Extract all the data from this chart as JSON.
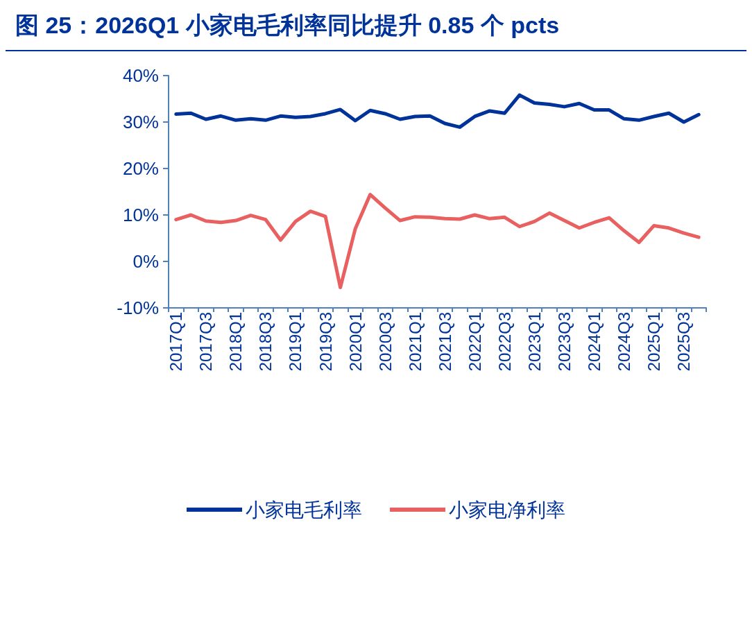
{
  "chart_data": {
    "type": "line",
    "title": "图 25：2026Q1 小家电毛利率同比提升 0.85 个 pcts",
    "categories": [
      "2017Q1",
      null,
      "2017Q3",
      null,
      "2018Q1",
      null,
      "2018Q3",
      null,
      "2019Q1",
      null,
      "2019Q3",
      null,
      "2020Q1",
      null,
      "2020Q3",
      null,
      "2021Q1",
      null,
      "2021Q3",
      null,
      "2022Q1",
      null,
      "2022Q3",
      null,
      "2023Q1",
      null,
      "2023Q3",
      null,
      "2024Q1",
      null,
      "2024Q3",
      null,
      "2025Q1",
      null,
      "2025Q3",
      null
    ],
    "series": [
      {
        "name": "小家电毛利率",
        "color": "#003399",
        "values": [
          31.7,
          31.9,
          30.6,
          31.3,
          30.4,
          30.7,
          30.4,
          31.3,
          31.0,
          31.2,
          31.8,
          32.7,
          30.3,
          32.5,
          31.8,
          30.6,
          31.2,
          31.3,
          29.7,
          28.9,
          31.2,
          32.4,
          31.9,
          35.8,
          34.1,
          33.8,
          33.3,
          34.0,
          32.6,
          32.6,
          30.7,
          30.4,
          31.2,
          31.9,
          30.0,
          31.6
        ]
      },
      {
        "name": "小家电净利率",
        "color": "#e86060",
        "values": [
          9.0,
          10.0,
          8.7,
          8.4,
          8.8,
          9.9,
          9.0,
          4.6,
          8.6,
          10.8,
          9.7,
          -5.6,
          7.0,
          14.4,
          11.5,
          8.8,
          9.6,
          9.5,
          9.2,
          9.1,
          10.0,
          9.2,
          9.5,
          7.5,
          8.6,
          10.4,
          8.8,
          7.2,
          8.4,
          9.4,
          6.6,
          4.1,
          7.7,
          7.2,
          6.1,
          5.2
        ]
      }
    ],
    "ylim": [
      -10,
      40
    ],
    "yticks": [
      {
        "value": -10,
        "label": "-10%"
      },
      {
        "value": 0,
        "label": "0%"
      },
      {
        "value": 10,
        "label": "10%"
      },
      {
        "value": 20,
        "label": "20%"
      },
      {
        "value": 30,
        "label": "30%"
      },
      {
        "value": 40,
        "label": "40%"
      }
    ],
    "grid": false,
    "legend": "bottom",
    "marker": "none",
    "line_style": "solid"
  }
}
